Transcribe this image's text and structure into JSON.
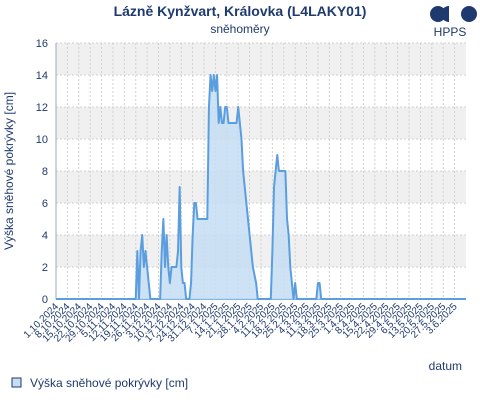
{
  "header": {
    "title": "Lázně Kynžvart, Královka (L4LAKY01)",
    "subtitle": "sněhoměry",
    "logo_text": "HPPS"
  },
  "colors": {
    "text": "#1f3a6e",
    "series_line": "#5a9ee0",
    "series_fill": "#c6ddf3",
    "band": "#f0f0f0",
    "grid": "#d0d0d0",
    "logo": "#1f3a6e"
  },
  "chart_data": {
    "type": "area",
    "title": "Lázně Kynžvart, Královka (L4LAKY01)",
    "subtitle": "sněhoměry",
    "xlabel": "datum",
    "ylabel": "Výška sněhové pokrývky [cm]",
    "ylim": [
      0,
      16
    ],
    "yticks": [
      0,
      2,
      4,
      6,
      8,
      10,
      12,
      14,
      16
    ],
    "xlim": [
      "2024-10-01",
      "2025-06-10"
    ],
    "xtick_labels": [
      "1.10.2024",
      "8.10.2024",
      "15.10.2024",
      "22.10.2024",
      "29.10.2024",
      "5.11.2024",
      "12.11.2024",
      "19.11.2024",
      "26.11.2024",
      "3.12.2024",
      "10.12.2024",
      "17.12.2024",
      "24.12.2024",
      "31.12.2024",
      "7.1.2025",
      "14.1.2025",
      "21.1.2025",
      "28.1.2025",
      "4.2.2025",
      "11.2.2025",
      "18.2.2025",
      "25.2.2025",
      "4.3.2025",
      "11.3.2025",
      "18.3.2025",
      "25.3.2025",
      "1.4.2025",
      "8.4.2025",
      "15.4.2025",
      "22.4.2025",
      "29.4.2025",
      "6.5.2025",
      "13.5.2025",
      "20.5.2025",
      "27.5.2025",
      "3.6.2025"
    ],
    "grid": true,
    "legend_position": "bottom-left",
    "series": [
      {
        "name": "Výška sněhové pokrývky [cm]",
        "points": [
          [
            "2024-10-01",
            0
          ],
          [
            "2024-11-19",
            0
          ],
          [
            "2024-11-20",
            3
          ],
          [
            "2024-11-21",
            0
          ],
          [
            "2024-11-22",
            3
          ],
          [
            "2024-11-23",
            4
          ],
          [
            "2024-11-24",
            2
          ],
          [
            "2024-11-25",
            3
          ],
          [
            "2024-11-26",
            2
          ],
          [
            "2024-11-27",
            1
          ],
          [
            "2024-11-28",
            0
          ],
          [
            "2024-12-04",
            0
          ],
          [
            "2024-12-05",
            3
          ],
          [
            "2024-12-06",
            5
          ],
          [
            "2024-12-07",
            2
          ],
          [
            "2024-12-08",
            4
          ],
          [
            "2024-12-09",
            2
          ],
          [
            "2024-12-10",
            1
          ],
          [
            "2024-12-11",
            2
          ],
          [
            "2024-12-12",
            2
          ],
          [
            "2024-12-14",
            2
          ],
          [
            "2024-12-15",
            3
          ],
          [
            "2024-12-16",
            7
          ],
          [
            "2024-12-17",
            2
          ],
          [
            "2024-12-18",
            1
          ],
          [
            "2024-12-19",
            1
          ],
          [
            "2024-12-20",
            0
          ],
          [
            "2024-12-22",
            0
          ],
          [
            "2024-12-23",
            1
          ],
          [
            "2024-12-24",
            4
          ],
          [
            "2024-12-25",
            6
          ],
          [
            "2024-12-26",
            6
          ],
          [
            "2024-12-27",
            5
          ],
          [
            "2025-01-02",
            5
          ],
          [
            "2025-01-03",
            12
          ],
          [
            "2025-01-04",
            14
          ],
          [
            "2025-01-05",
            13
          ],
          [
            "2025-01-06",
            14
          ],
          [
            "2025-01-07",
            13
          ],
          [
            "2025-01-08",
            14
          ],
          [
            "2025-01-09",
            11
          ],
          [
            "2025-01-10",
            12
          ],
          [
            "2025-01-11",
            11
          ],
          [
            "2025-01-12",
            11
          ],
          [
            "2025-01-13",
            12
          ],
          [
            "2025-01-14",
            12
          ],
          [
            "2025-01-15",
            11
          ],
          [
            "2025-01-20",
            11
          ],
          [
            "2025-01-21",
            12
          ],
          [
            "2025-01-22",
            11
          ],
          [
            "2025-01-23",
            10
          ],
          [
            "2025-01-24",
            8
          ],
          [
            "2025-01-26",
            6
          ],
          [
            "2025-01-28",
            4
          ],
          [
            "2025-01-30",
            2
          ],
          [
            "2025-02-01",
            1
          ],
          [
            "2025-02-02",
            0
          ],
          [
            "2025-02-10",
            0
          ],
          [
            "2025-02-11",
            3
          ],
          [
            "2025-02-12",
            7
          ],
          [
            "2025-02-13",
            8
          ],
          [
            "2025-02-14",
            9
          ],
          [
            "2025-02-15",
            8
          ],
          [
            "2025-02-19",
            8
          ],
          [
            "2025-02-20",
            5
          ],
          [
            "2025-02-21",
            4
          ],
          [
            "2025-02-22",
            2
          ],
          [
            "2025-02-23",
            1
          ],
          [
            "2025-02-24",
            0
          ],
          [
            "2025-02-25",
            1
          ],
          [
            "2025-02-26",
            0
          ],
          [
            "2025-03-10",
            0
          ],
          [
            "2025-03-11",
            1
          ],
          [
            "2025-03-12",
            1
          ],
          [
            "2025-03-13",
            0
          ],
          [
            "2025-06-10",
            0
          ]
        ]
      }
    ]
  }
}
